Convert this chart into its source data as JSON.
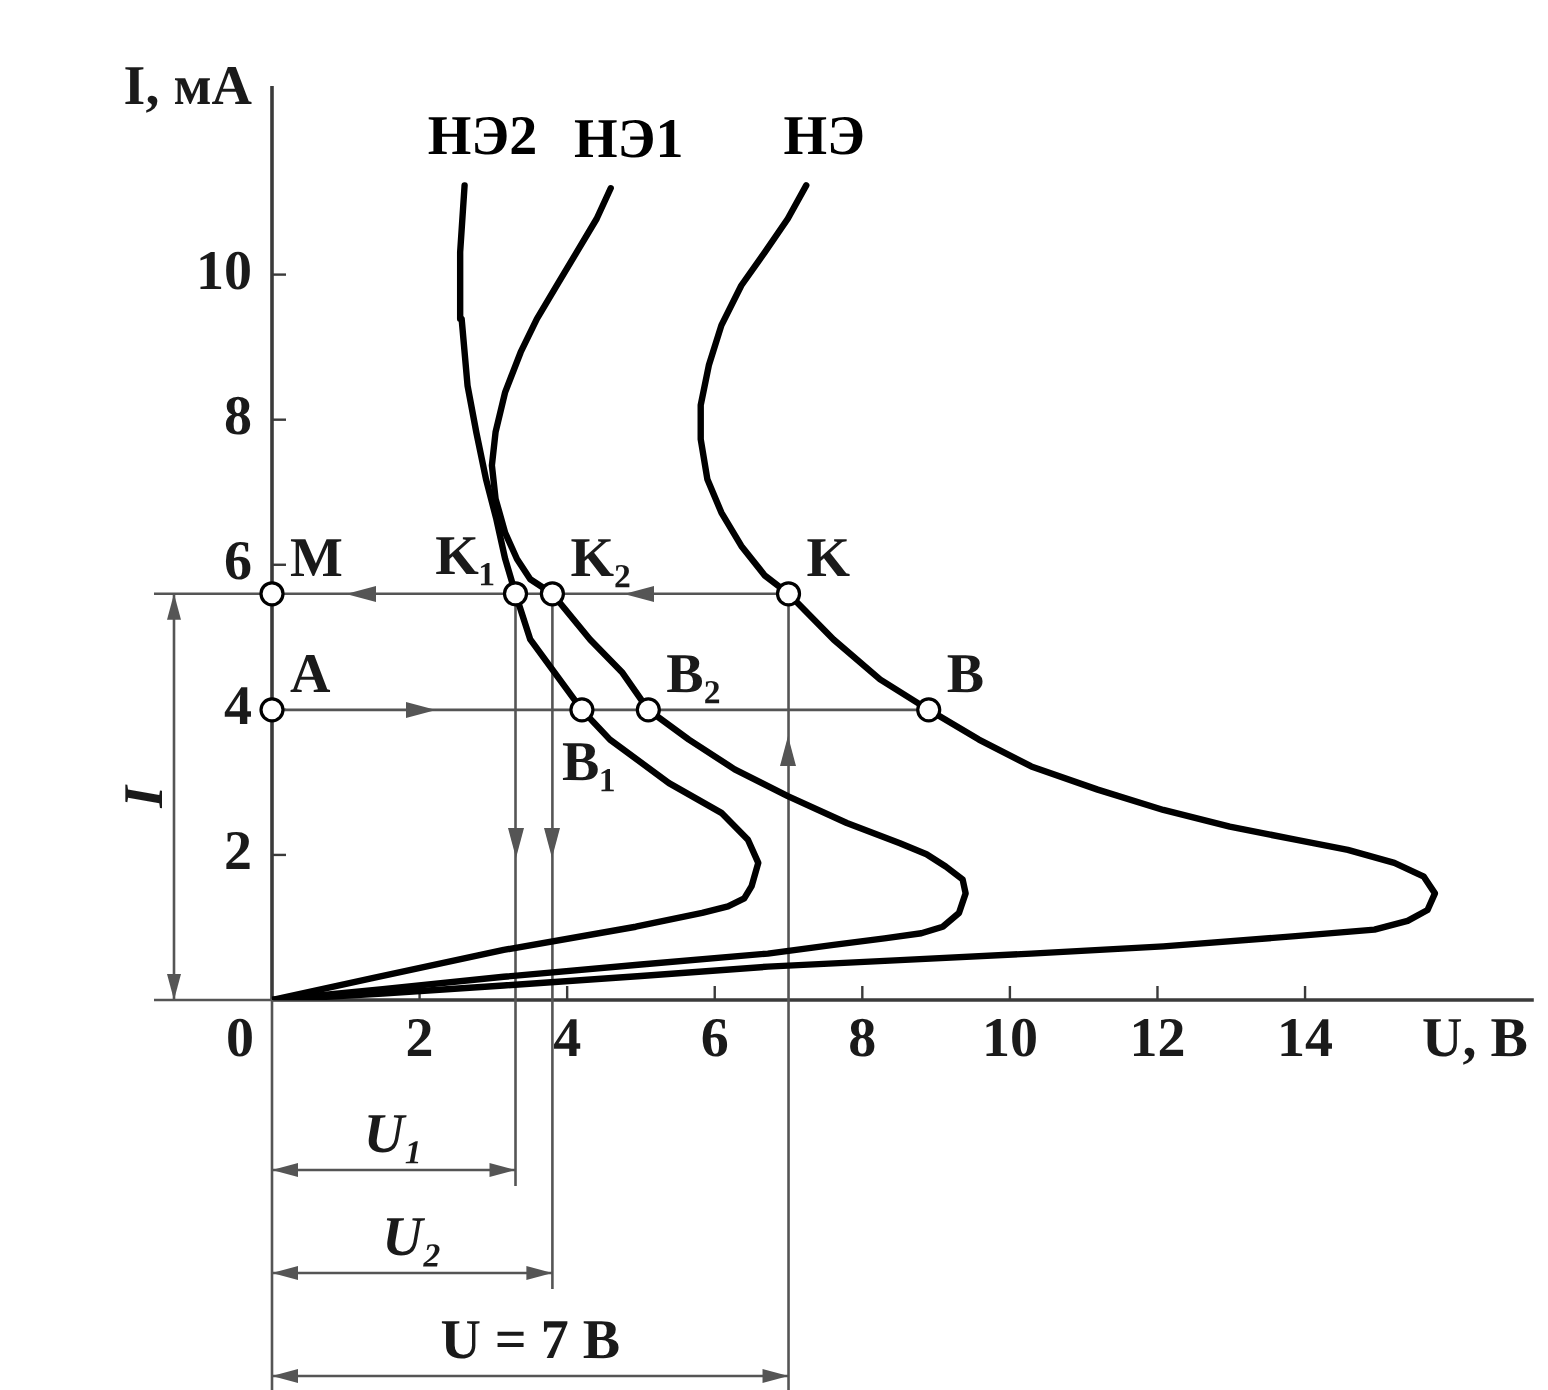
{
  "chart_data": {
    "type": "line",
    "xlabel": "U, В",
    "ylabel": "I, мА",
    "xlim": [
      0,
      17.1
    ],
    "ylim": [
      0,
      12.6
    ],
    "xticks": [
      0,
      2,
      4,
      6,
      8,
      10,
      12,
      14
    ],
    "yticks": [
      2,
      4,
      6,
      8,
      10
    ],
    "series": [
      {
        "name": "НЭ2",
        "color": "#000000",
        "x": [
          0,
          1.36,
          3.14,
          4.93,
          5.83,
          6.18,
          6.4,
          6.5,
          6.59,
          6.45,
          6.09,
          5.38,
          4.58,
          4.2,
          3.5,
          3.3,
          3.16,
          3.04,
          2.9,
          2.77,
          2.65,
          2.57,
          2.55,
          2.61
        ],
        "values": [
          0,
          0.3,
          0.69,
          1.01,
          1.2,
          1.29,
          1.4,
          1.57,
          1.89,
          2.21,
          2.58,
          2.99,
          3.59,
          4.0,
          4.97,
          5.6,
          6.08,
          6.63,
          7.18,
          7.82,
          8.47,
          9.39,
          10.31,
          11.23
        ]
      },
      {
        "name": "НЭ1",
        "color": "#000000",
        "x": [
          0,
          1.5,
          3.14,
          5.0,
          6.72,
          7.61,
          8.3,
          8.8,
          9.09,
          9.31,
          9.4,
          9.36,
          9.13,
          8.87,
          8.51,
          7.79,
          6.99,
          6.27,
          5.65,
          5.1,
          4.75,
          4.31,
          3.8,
          3.5,
          3.32,
          3.16,
          3.03,
          2.98,
          3.03,
          3.16,
          3.37,
          3.59,
          3.86,
          4.13,
          4.4,
          4.59
        ],
        "values": [
          0,
          0.15,
          0.32,
          0.49,
          0.64,
          0.76,
          0.85,
          0.92,
          1.01,
          1.2,
          1.47,
          1.66,
          1.84,
          2.01,
          2.16,
          2.44,
          2.81,
          3.18,
          3.59,
          4.0,
          4.51,
          4.97,
          5.6,
          5.8,
          6.08,
          6.44,
          6.91,
          7.37,
          7.83,
          8.38,
          8.93,
          9.39,
          9.85,
          10.31,
          10.77,
          11.19
        ]
      },
      {
        "name": "НЭ",
        "color": "#000000",
        "x": [
          0,
          1.5,
          3.14,
          5.0,
          6.72,
          8.51,
          10.29,
          12.08,
          13.87,
          14.94,
          15.39,
          15.66,
          15.76,
          15.61,
          15.21,
          14.58,
          13.87,
          12.98,
          12.08,
          11.19,
          10.29,
          9.58,
          8.9,
          8.24,
          7.61,
          7.0,
          6.68,
          6.36,
          6.09,
          5.9,
          5.81,
          5.81,
          5.92,
          6.09,
          6.36,
          6.68,
          6.99,
          7.24
        ],
        "values": [
          0,
          0.09,
          0.2,
          0.33,
          0.46,
          0.55,
          0.64,
          0.74,
          0.88,
          0.97,
          1.09,
          1.24,
          1.47,
          1.7,
          1.89,
          2.07,
          2.21,
          2.39,
          2.62,
          2.9,
          3.22,
          3.59,
          4.0,
          4.42,
          4.97,
          5.6,
          5.85,
          6.26,
          6.72,
          7.18,
          7.73,
          8.2,
          8.75,
          9.3,
          9.85,
          10.31,
          10.77,
          11.23
        ]
      },
      {
        "color": "#555555",
        "x": [
          0,
          8.9
        ],
        "values": [
          4,
          4
        ]
      },
      {
        "type": "scatter",
        "marker": "circle",
        "color": "#000000",
        "x": [
          0,
          3.3,
          3.8,
          7.0,
          0,
          4.2,
          5.1,
          8.9
        ],
        "values": [
          5.6,
          5.6,
          5.6,
          5.6,
          4,
          4,
          4,
          4
        ]
      }
    ],
    "ref_lines": [
      {
        "axis": "y",
        "value": 5.6,
        "color": "#555555"
      },
      {
        "axis": "x",
        "value": 3.3,
        "color": "#555555"
      },
      {
        "axis": "x",
        "value": 3.8,
        "color": "#555555"
      },
      {
        "axis": "x",
        "value": 7.0,
        "color": "#555555"
      }
    ],
    "annotations": [
      {
        "text": "M",
        "x": 0,
        "y": 5.6
      },
      {
        "text": "K₁",
        "x": 3.3,
        "y": 5.6
      },
      {
        "text": "K₂",
        "x": 3.8,
        "y": 5.6
      },
      {
        "text": "K",
        "x": 7.0,
        "y": 5.6
      },
      {
        "text": "A",
        "x": 0,
        "y": 4
      },
      {
        "text": "B₁",
        "x": 4.2,
        "y": 4
      },
      {
        "text": "B₂",
        "x": 5.1,
        "y": 4
      },
      {
        "text": "B",
        "x": 8.9,
        "y": 4
      },
      "U₁",
      "U₂",
      "U = 7 В",
      "I"
    ]
  }
}
